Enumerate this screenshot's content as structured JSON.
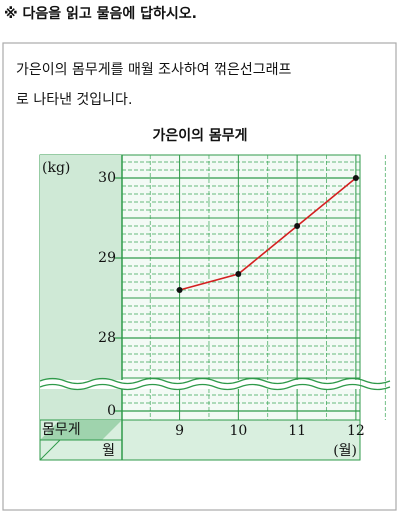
{
  "instruction": "※ 다음을 읽고 물음에 답하시오.",
  "question": [
    "가은이의 몸무게를 매월 조사하여 꺾은선그래프",
    "로 나타낸 것입니다."
  ],
  "chart_data": {
    "type": "line",
    "title": "가은이의 몸무게",
    "y_label": "(kg)",
    "x_label": "(월)",
    "row_header": "몸무게",
    "column_header": "월",
    "categories": [
      "9",
      "10",
      "11",
      "12"
    ],
    "series": [
      {
        "name": "몸무게",
        "color": "#d42020",
        "values": [
          28.6,
          28.8,
          29.4,
          30
        ]
      }
    ],
    "ylim": [
      27.5,
      30.2
    ],
    "yticks": [
      0,
      28,
      29,
      30
    ],
    "axis_break": true,
    "grid": true
  }
}
